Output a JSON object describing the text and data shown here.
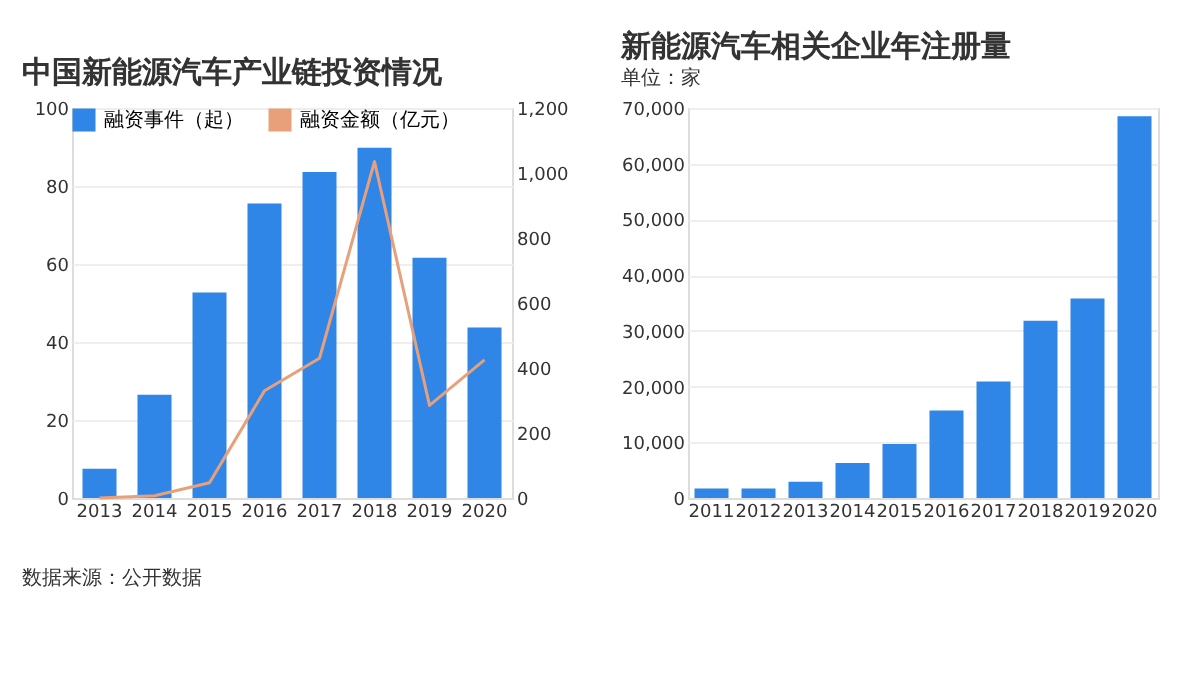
{
  "chart_data": [
    {
      "type": "bar",
      "title": "中国新能源汽车产业链投资情况",
      "categories": [
        "2013",
        "2014",
        "2015",
        "2016",
        "2017",
        "2018",
        "2019",
        "2020"
      ],
      "series": [
        {
          "name": "融资事件（起）",
          "type": "bar",
          "color": "#2f86e6",
          "values": [
            7.5,
            26.5,
            52.7,
            75.5,
            83.6,
            89.8,
            61.6,
            43.7
          ]
        },
        {
          "name": "融资金额（亿元）",
          "type": "line",
          "axis": "y2",
          "color": "#e8a07a",
          "values": [
            0,
            7,
            47,
            330,
            430,
            1035,
            285,
            425
          ]
        }
      ],
      "ylim": [
        0,
        100
      ],
      "yticks": [
        0,
        20,
        40,
        60,
        80,
        100
      ],
      "y2lim": [
        0,
        1200
      ],
      "y2ticks": [
        0,
        {
          "value": 200,
          "label": "200"
        },
        {
          "value": 400,
          "label": "400"
        },
        {
          "value": 600,
          "label": "600"
        },
        {
          "value": 800,
          "label": "800"
        },
        {
          "value": 1000,
          "label": "1,000"
        },
        {
          "value": 1200,
          "label": "1,200"
        }
      ],
      "legend": "top left",
      "grid": "y",
      "annotations": [
        "数据来源：公开数据"
      ]
    },
    {
      "type": "bar",
      "title": "新能源汽车相关企业年注册量",
      "subtitle": "单位：家",
      "categories": [
        "2011",
        "2012",
        "2013",
        "2014",
        "2015",
        "2016",
        "2017",
        "2018",
        "2019",
        "2020"
      ],
      "series": [
        {
          "color": "#2f86e6",
          "values": [
            1700,
            1700,
            2900,
            6300,
            9700,
            15700,
            20900,
            31800,
            35800,
            68500
          ]
        }
      ],
      "ylim": [
        0,
        70000
      ],
      "yticks": [
        0,
        {
          "value": 10000,
          "label": "10,000"
        },
        {
          "value": 20000,
          "label": "20,000"
        },
        {
          "value": 30000,
          "label": "30,000"
        },
        {
          "value": 40000,
          "label": "40,000"
        },
        {
          "value": 50000,
          "label": "50,000"
        },
        {
          "value": 60000,
          "label": "60,000"
        },
        {
          "value": 70000,
          "label": "70,000"
        }
      ],
      "grid": "y"
    }
  ]
}
